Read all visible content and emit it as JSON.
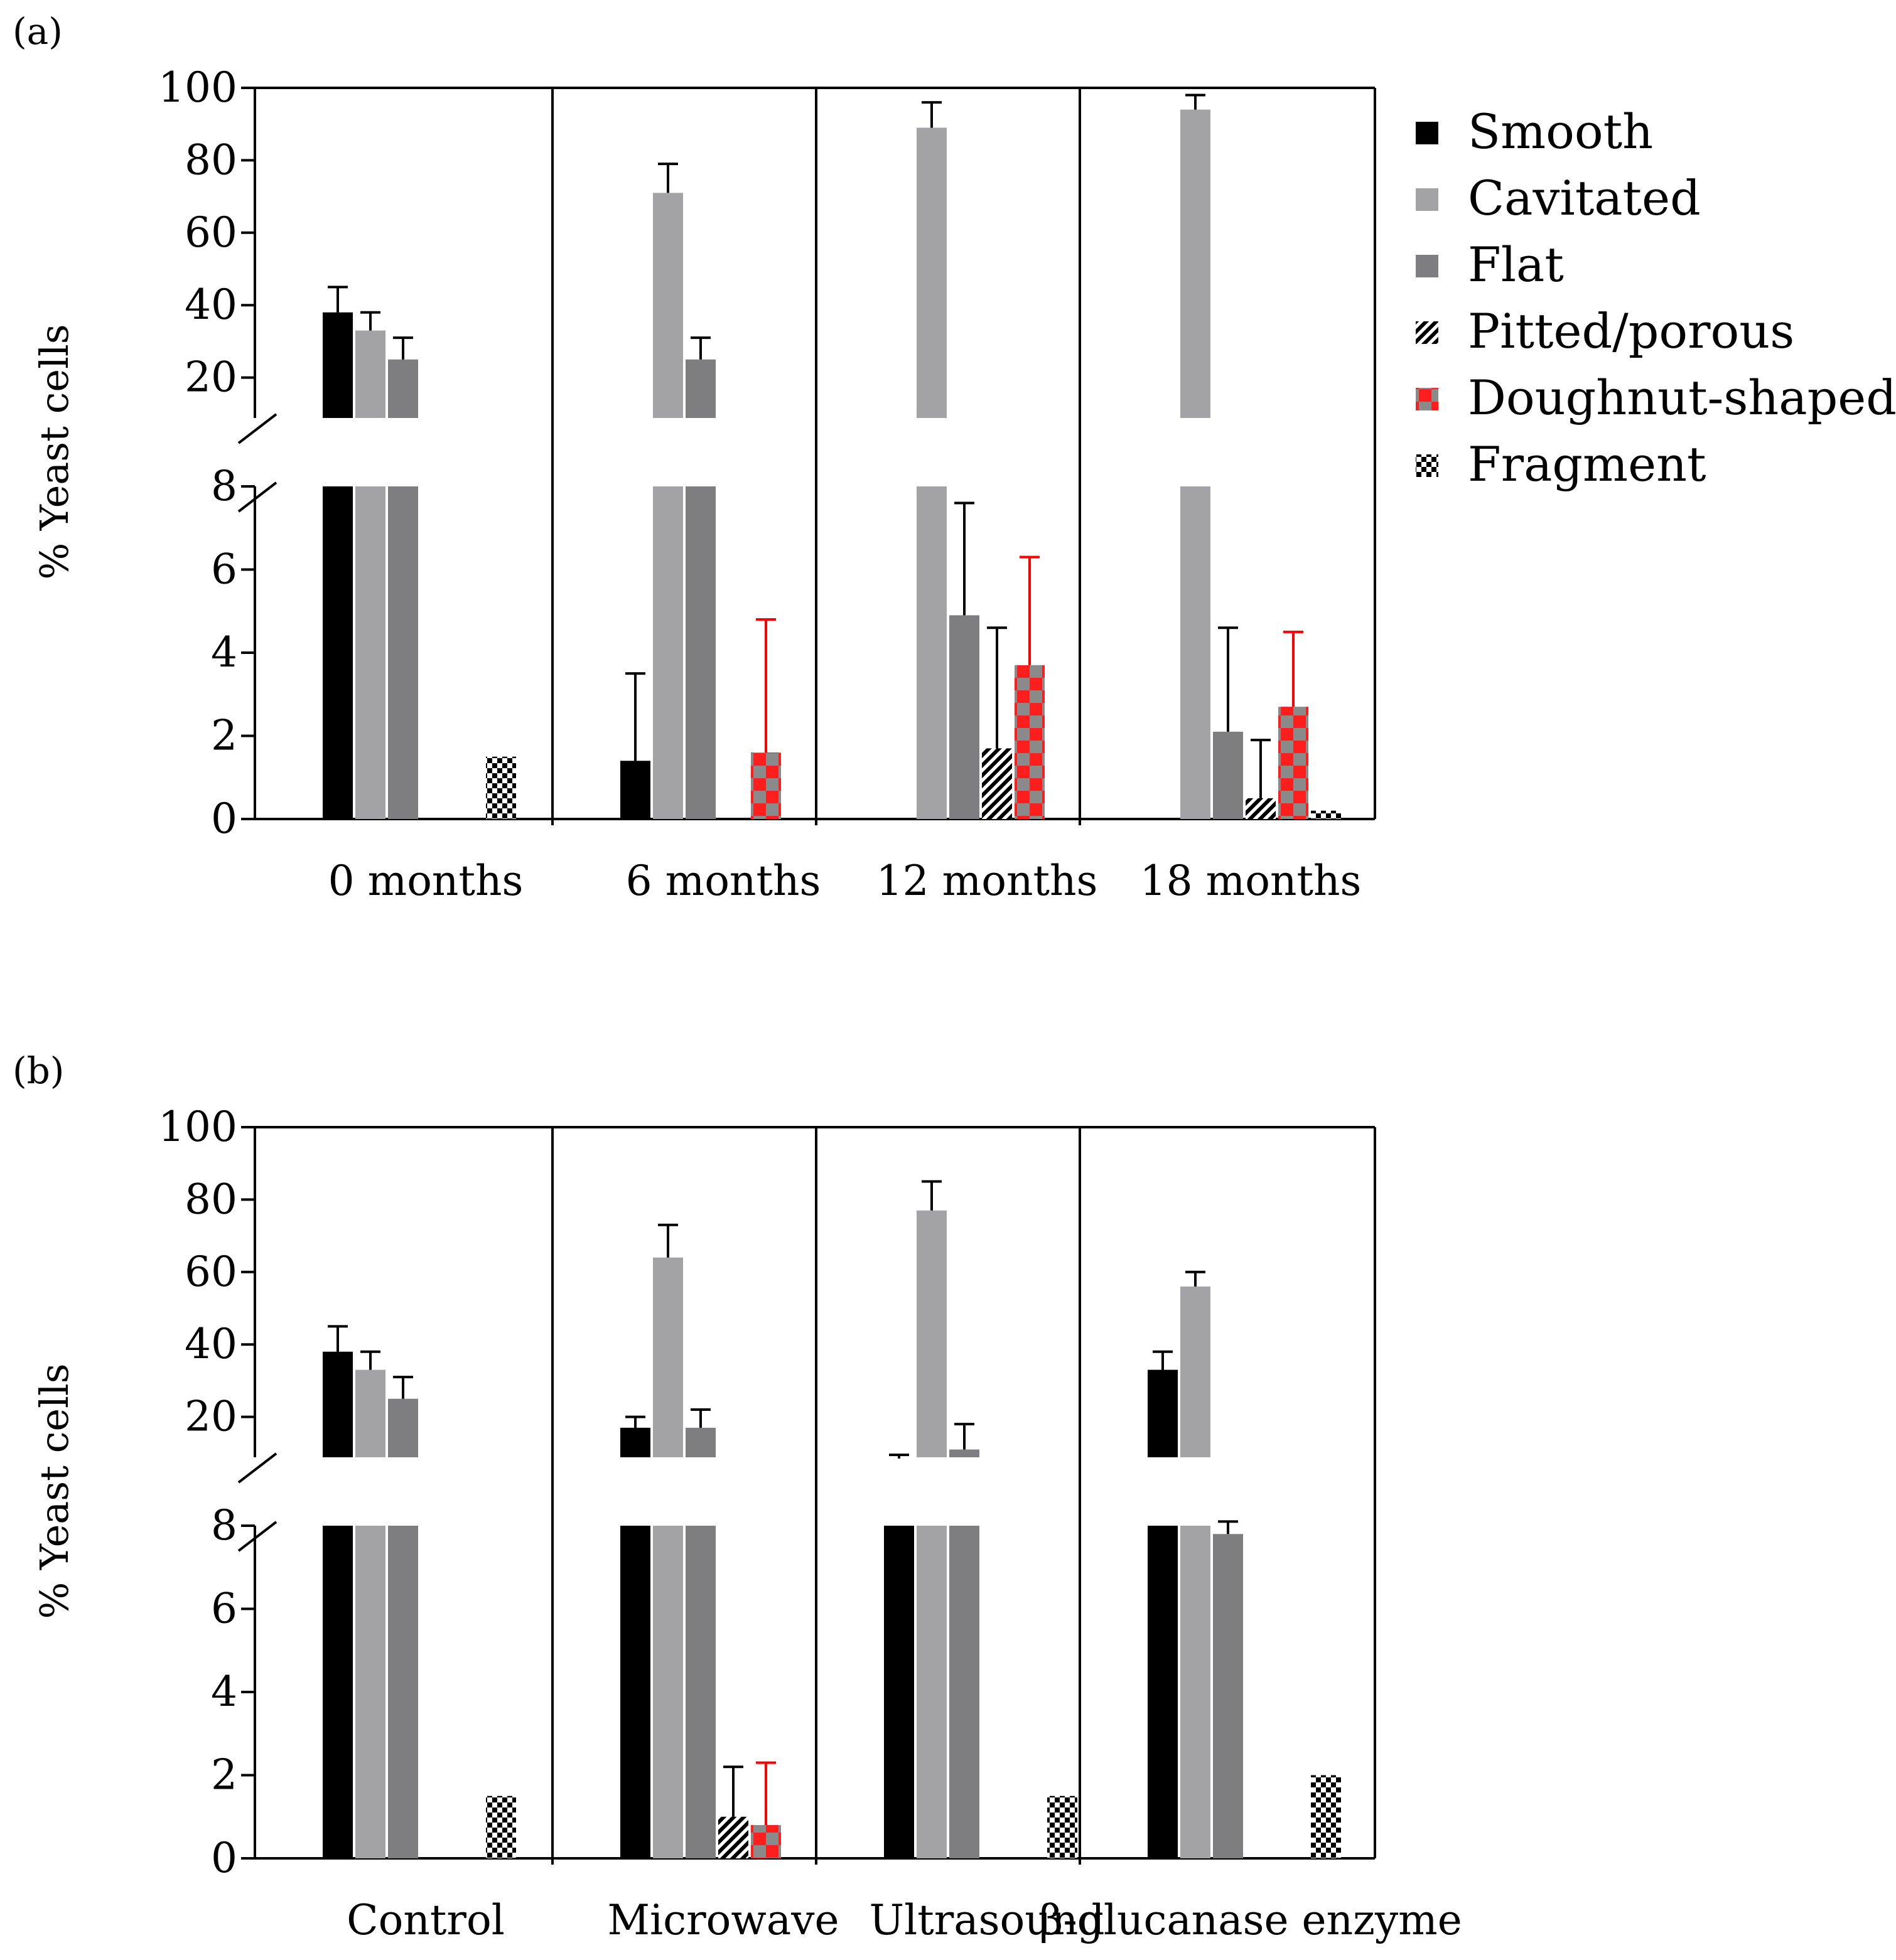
{
  "chart_data": [
    {
      "panel_label": "(a)",
      "type": "bar",
      "ylabel": "% Yeast cells",
      "ylim_lower": [
        0,
        8
      ],
      "ylim_upper": [
        8,
        100
      ],
      "lower_ticks": [
        "0",
        "2",
        "4",
        "6",
        "8"
      ],
      "upper_ticks": [
        "20",
        "40",
        "60",
        "80",
        "100"
      ],
      "categories": [
        "0 months",
        "6 months",
        "12 months",
        "18 months"
      ],
      "series": [
        {
          "name": "Smooth",
          "values": [
            38,
            1.4,
            0,
            0
          ],
          "errors": [
            7,
            2.1,
            0,
            0
          ]
        },
        {
          "name": "Cavitated",
          "values": [
            33,
            71,
            89,
            94
          ],
          "errors": [
            5,
            8,
            7,
            4
          ]
        },
        {
          "name": "Flat",
          "values": [
            25,
            25,
            4.9,
            2.1
          ],
          "errors": [
            6,
            6,
            2.7,
            2.5
          ]
        },
        {
          "name": "Pitted/porous",
          "values": [
            0,
            0,
            1.7,
            0.5
          ],
          "errors": [
            0,
            0,
            2.9,
            1.4
          ]
        },
        {
          "name": "Doughnut-shaped",
          "values": [
            0,
            1.6,
            3.7,
            2.7
          ],
          "errors": [
            0,
            3.2,
            2.6,
            1.8
          ]
        },
        {
          "name": "Fragment",
          "values": [
            1.5,
            0,
            0,
            0.2
          ],
          "errors": [
            0,
            0,
            0,
            0
          ]
        }
      ]
    },
    {
      "panel_label": "(b)",
      "type": "bar",
      "ylabel": "% Yeast cells",
      "ylim_lower": [
        0,
        8
      ],
      "ylim_upper": [
        8,
        100
      ],
      "lower_ticks": [
        "0",
        "2",
        "4",
        "6",
        "8"
      ],
      "upper_ticks": [
        "20",
        "40",
        "60",
        "80",
        "100"
      ],
      "categories": [
        "Control",
        "Microwave",
        "Ultrasound",
        "β-glucanase enzyme"
      ],
      "series": [
        {
          "name": "Smooth",
          "values": [
            38,
            17,
            8.5,
            33
          ],
          "errors": [
            7,
            3,
            1,
            5
          ]
        },
        {
          "name": "Cavitated",
          "values": [
            33,
            64,
            77,
            56
          ],
          "errors": [
            5,
            9,
            8,
            4
          ]
        },
        {
          "name": "Flat",
          "values": [
            25,
            17,
            11,
            7.8
          ],
          "errors": [
            6,
            5,
            7,
            0.3
          ]
        },
        {
          "name": "Pitted/porous",
          "values": [
            0,
            1.0,
            0,
            0
          ],
          "errors": [
            0,
            1.2,
            0,
            0
          ]
        },
        {
          "name": "Doughnut-shaped",
          "values": [
            0,
            0.8,
            0,
            0
          ],
          "errors": [
            0,
            1.5,
            0,
            0
          ]
        },
        {
          "name": "Fragment",
          "values": [
            1.5,
            0,
            1.5,
            2.0
          ],
          "errors": [
            0,
            0,
            0,
            0
          ]
        }
      ]
    }
  ],
  "legend": [
    {
      "name": "Smooth"
    },
    {
      "name": "Cavitated"
    },
    {
      "name": "Flat"
    },
    {
      "name": "Pitted/porous"
    },
    {
      "name": "Doughnut-shaped"
    },
    {
      "name": "Fragment"
    }
  ],
  "colors": {
    "smooth": "#000000",
    "cavitated": "#a3a3a6",
    "flat": "#7e7e80",
    "error_red": "#ff0000",
    "doughnut_red": "#ff1e1e",
    "doughnut_gray": "#8a8a8a"
  }
}
